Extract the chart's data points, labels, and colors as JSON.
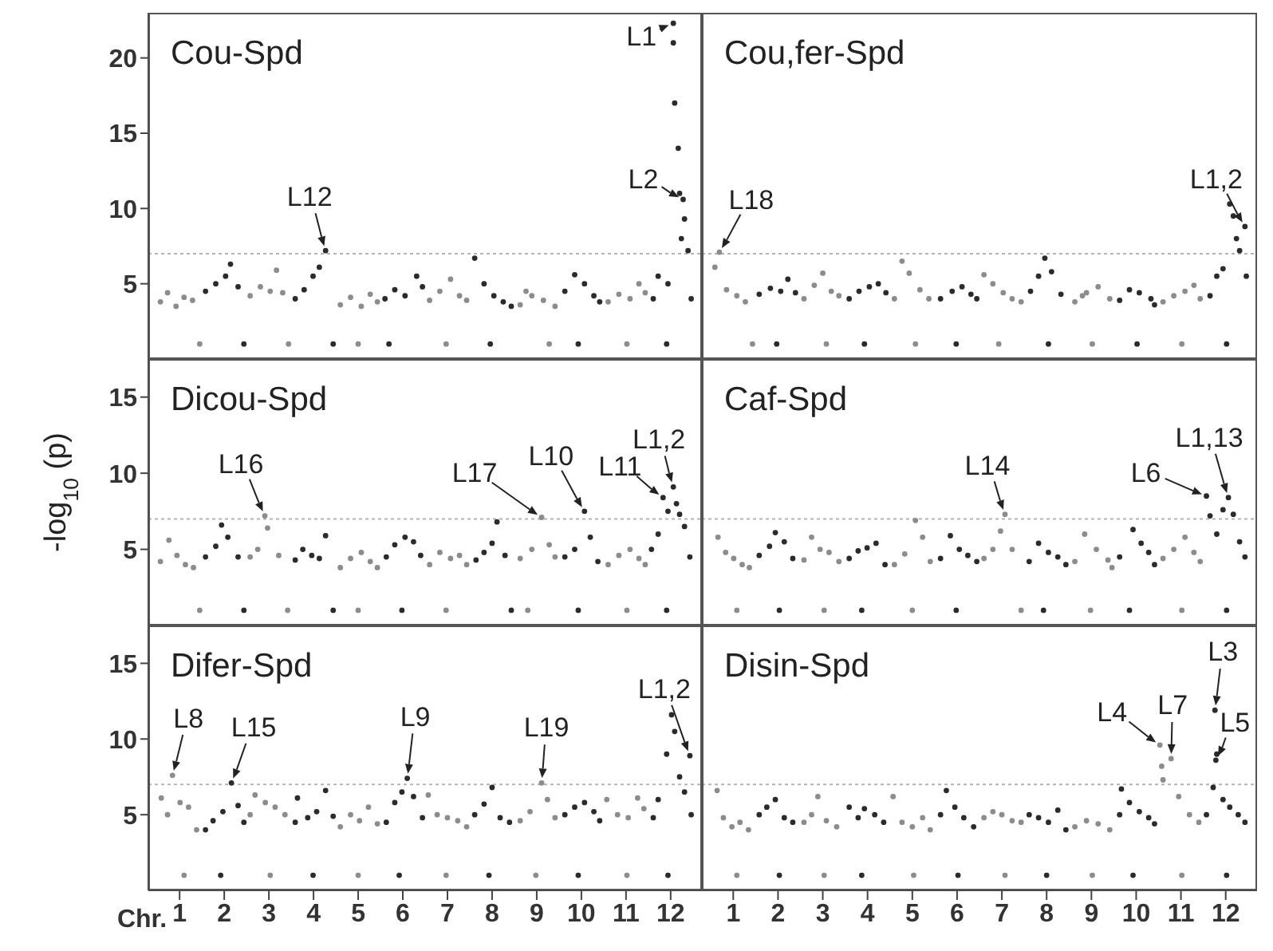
{
  "chart_data": [
    {
      "type": "scatter",
      "title": "Cou-Spd",
      "xlim": [
        0.3,
        12.7
      ],
      "xticks": [
        1,
        2,
        3,
        4,
        5,
        6,
        7,
        8,
        9,
        10,
        11,
        12
      ],
      "ylim": [
        0,
        23
      ],
      "yticks": [
        5,
        10,
        15,
        20
      ],
      "tick_labels": "y",
      "marker": "circle",
      "ref_lines": [
        {
          "axis": "y",
          "value": 7,
          "color": "#b4b4b4",
          "line_style": "dotted"
        }
      ],
      "annotations": [
        {
          "text": "L1",
          "x": 12.06,
          "y": 22.3
        },
        {
          "text": "L2",
          "x": 12.28,
          "y": 10.6
        },
        {
          "text": "L12",
          "x": 4.27,
          "y": 7.2
        }
      ],
      "series": [
        {
          "color": "#8c8c8c",
          "x": [
            0.57,
            0.73,
            0.92,
            1.1,
            1.29,
            1.45,
            2.58,
            2.81,
            3.03,
            3.17,
            3.31,
            3.44,
            4.6,
            4.83,
            5.07,
            5.27,
            5.43,
            5.0,
            6.6,
            6.83,
            7.07,
            7.27,
            7.43,
            6.97,
            8.63,
            8.89,
            9.15,
            9.41,
            8.76,
            9.28,
            10.6,
            10.84,
            11.09,
            11.29,
            11.43,
            11.02
          ],
          "values": [
            3.8,
            4.4,
            3.5,
            4.1,
            3.9,
            1.0,
            4.2,
            4.8,
            4.5,
            5.9,
            4.4,
            1.0,
            3.6,
            4.1,
            3.5,
            4.3,
            3.8,
            1.0,
            3.9,
            4.5,
            5.3,
            4.2,
            3.9,
            1.0,
            3.6,
            4.2,
            3.9,
            3.5,
            4.5,
            1.0,
            3.8,
            4.3,
            4.0,
            5.0,
            4.4,
            1.0
          ]
        },
        {
          "color": "#2b2b2b",
          "x": [
            1.58,
            1.81,
            2.03,
            2.14,
            2.31,
            2.44,
            3.59,
            3.79,
            3.99,
            4.13,
            4.27,
            4.44,
            5.6,
            5.82,
            6.05,
            6.31,
            6.44,
            5.69,
            7.61,
            7.82,
            8.04,
            8.25,
            8.43,
            7.96,
            9.63,
            9.85,
            10.07,
            10.28,
            10.41,
            9.93,
            12.06,
            12.06,
            12.09,
            12.17,
            12.2,
            12.28,
            12.31,
            12.39,
            12.24,
            11.72,
            11.61,
            11.94,
            12.46,
            11.91
          ],
          "values": [
            4.5,
            5.0,
            5.5,
            6.3,
            4.8,
            1.0,
            4.0,
            4.6,
            5.5,
            6.1,
            7.2,
            1.0,
            4.0,
            4.6,
            4.2,
            5.5,
            4.8,
            1.0,
            6.7,
            5.0,
            4.2,
            3.8,
            3.5,
            1.0,
            4.5,
            5.6,
            5.0,
            4.2,
            3.8,
            1.0,
            22.3,
            21.0,
            17.0,
            14.0,
            11.0,
            10.6,
            9.3,
            7.2,
            8.0,
            5.5,
            4.0,
            5.0,
            4.0,
            1.0
          ]
        }
      ]
    },
    {
      "type": "scatter",
      "title": "Cou,fer-Spd",
      "xlim": [
        0.3,
        12.7
      ],
      "xticks": [
        1,
        2,
        3,
        4,
        5,
        6,
        7,
        8,
        9,
        10,
        11,
        12
      ],
      "ylim": [
        0,
        23
      ],
      "tick_labels": false,
      "marker": "circle",
      "ref_lines": [
        {
          "axis": "y",
          "value": 7,
          "color": "#b4b4b4",
          "line_style": "dotted"
        }
      ],
      "annotations": [
        {
          "text": "L18",
          "x": 0.69,
          "y": 7.1
        },
        {
          "text": "L1,2",
          "x": 12.43,
          "y": 8.8
        }
      ],
      "series": [
        {
          "color": "#8c8c8c",
          "x": [
            0.59,
            0.69,
            0.85,
            1.08,
            1.27,
            1.43,
            2.58,
            2.81,
            3.0,
            3.19,
            3.36,
            3.08,
            4.6,
            4.77,
            4.93,
            5.17,
            5.37,
            5.07,
            6.6,
            6.8,
            7.03,
            7.23,
            7.43,
            6.93,
            8.63,
            8.89,
            9.15,
            9.41,
            9.02,
            8.8,
            10.6,
            10.84,
            11.09,
            11.29,
            11.43,
            11.02
          ],
          "values": [
            6.1,
            7.1,
            4.6,
            4.2,
            3.8,
            1.0,
            4.0,
            4.9,
            5.7,
            4.5,
            4.2,
            1.0,
            4.0,
            6.5,
            5.7,
            4.6,
            4.0,
            1.0,
            5.6,
            5.0,
            4.4,
            4.0,
            3.8,
            1.0,
            3.8,
            4.4,
            4.8,
            4.0,
            1.0,
            4.2,
            3.8,
            4.2,
            4.5,
            4.9,
            4.0,
            1.0
          ]
        },
        {
          "color": "#2b2b2b",
          "x": [
            1.58,
            1.83,
            2.06,
            2.22,
            2.39,
            1.97,
            3.59,
            3.81,
            4.04,
            4.24,
            4.41,
            3.93,
            5.63,
            5.89,
            6.11,
            6.31,
            6.44,
            5.98,
            7.64,
            7.82,
            7.96,
            8.11,
            8.32,
            8.04,
            9.63,
            9.85,
            10.07,
            10.33,
            10.02,
            10.41,
            11.65,
            11.8,
            11.94,
            12.09,
            12.17,
            12.24,
            12.31,
            12.43,
            12.46,
            12.02
          ],
          "values": [
            4.3,
            4.7,
            4.5,
            5.3,
            4.4,
            1.0,
            4.0,
            4.5,
            4.8,
            5.0,
            4.4,
            1.0,
            4.0,
            4.5,
            4.8,
            4.3,
            4.0,
            1.0,
            4.5,
            5.5,
            6.7,
            5.8,
            4.3,
            1.0,
            3.9,
            4.6,
            4.4,
            4.0,
            1.0,
            3.6,
            4.2,
            5.5,
            6.0,
            10.3,
            9.5,
            8.0,
            7.2,
            8.8,
            5.5,
            1.0
          ]
        }
      ]
    },
    {
      "type": "scatter",
      "title": "Dicou-Spd",
      "ylabel": "-log$_{10}$ (p)",
      "xlim": [
        0.3,
        12.7
      ],
      "xticks": [
        1,
        2,
        3,
        4,
        5,
        6,
        7,
        8,
        9,
        10,
        11,
        12
      ],
      "ylim": [
        0,
        17.5
      ],
      "yticks": [
        5,
        10,
        15
      ],
      "tick_labels": "y",
      "marker": "circle",
      "ref_lines": [
        {
          "axis": "y",
          "value": 7,
          "color": "#b4b4b4",
          "line_style": "dotted"
        }
      ],
      "annotations": [
        {
          "text": "L16",
          "x": 2.91,
          "y": 7.2
        },
        {
          "text": "L17",
          "x": 9.11,
          "y": 7.1
        },
        {
          "text": "L10",
          "x": 10.07,
          "y": 7.5
        },
        {
          "text": "L11",
          "x": 11.83,
          "y": 8.4
        },
        {
          "text": "L1,2",
          "x": 12.06,
          "y": 9.1
        }
      ],
      "series": [
        {
          "color": "#8c8c8c",
          "x": [
            0.57,
            0.76,
            0.94,
            1.13,
            1.31,
            1.45,
            2.58,
            2.75,
            2.91,
            2.97,
            3.22,
            3.42,
            4.6,
            4.83,
            5.07,
            5.27,
            5.43,
            5.0,
            6.6,
            6.83,
            7.07,
            7.27,
            7.43,
            6.97,
            8.63,
            8.89,
            9.11,
            9.28,
            9.41,
            8.8,
            10.6,
            10.84,
            11.09,
            11.29,
            11.43,
            11.02
          ],
          "values": [
            4.2,
            5.6,
            4.6,
            4.0,
            3.8,
            1.0,
            4.5,
            5.0,
            7.2,
            6.4,
            4.6,
            1.0,
            3.8,
            4.4,
            4.8,
            4.2,
            3.8,
            1.0,
            4.0,
            4.8,
            4.4,
            4.6,
            4.0,
            1.0,
            4.4,
            5.0,
            7.1,
            5.3,
            4.5,
            1.0,
            4.0,
            4.6,
            5.0,
            4.4,
            4.0,
            1.0
          ]
        },
        {
          "color": "#2b2b2b",
          "x": [
            1.58,
            1.81,
            1.94,
            2.08,
            2.31,
            2.44,
            3.59,
            3.76,
            3.96,
            4.13,
            4.27,
            4.44,
            5.63,
            5.82,
            6.05,
            6.24,
            6.4,
            5.98,
            7.64,
            7.82,
            8.0,
            8.11,
            8.29,
            8.43,
            9.63,
            9.85,
            10.07,
            10.2,
            10.37,
            9.93,
            11.57,
            11.72,
            11.83,
            11.94,
            12.06,
            12.13,
            12.2,
            12.31,
            12.43,
            11.91
          ],
          "values": [
            4.5,
            5.2,
            6.6,
            5.8,
            4.5,
            1.0,
            4.3,
            5.0,
            4.6,
            4.4,
            5.9,
            1.0,
            4.5,
            5.3,
            5.8,
            5.5,
            4.6,
            1.0,
            4.3,
            4.8,
            5.4,
            6.8,
            4.6,
            1.0,
            4.5,
            5.0,
            7.5,
            5.8,
            4.2,
            1.0,
            5.0,
            6.0,
            8.4,
            7.5,
            9.1,
            8.0,
            7.3,
            6.5,
            4.5,
            1.0
          ]
        }
      ]
    },
    {
      "type": "scatter",
      "title": "Caf-Spd",
      "xlim": [
        0.3,
        12.7
      ],
      "xticks": [
        1,
        2,
        3,
        4,
        5,
        6,
        7,
        8,
        9,
        10,
        11,
        12
      ],
      "ylim": [
        0,
        17.5
      ],
      "tick_labels": false,
      "marker": "circle",
      "ref_lines": [
        {
          "axis": "y",
          "value": 7,
          "color": "#b4b4b4",
          "line_style": "dotted"
        }
      ],
      "annotations": [
        {
          "text": "L14",
          "x": 7.07,
          "y": 7.3
        },
        {
          "text": "L6",
          "x": 11.57,
          "y": 8.5
        },
        {
          "text": "L1,13",
          "x": 12.06,
          "y": 8.4
        }
      ],
      "series": [
        {
          "color": "#8c8c8c",
          "x": [
            0.66,
            0.83,
            1.01,
            1.2,
            1.36,
            1.08,
            2.58,
            2.75,
            2.94,
            3.14,
            3.36,
            3.03,
            4.6,
            4.83,
            5.07,
            5.23,
            5.4,
            5.0,
            6.6,
            6.8,
            6.97,
            7.07,
            7.23,
            7.43,
            8.63,
            8.85,
            9.11,
            9.37,
            8.98,
            9.46,
            10.6,
            10.84,
            11.09,
            11.29,
            11.43,
            11.02
          ],
          "values": [
            5.8,
            4.8,
            4.4,
            4.0,
            3.8,
            1.0,
            4.3,
            5.8,
            5.0,
            4.8,
            4.2,
            1.0,
            4.0,
            4.7,
            6.9,
            5.8,
            4.2,
            1.0,
            4.4,
            5.0,
            6.2,
            7.3,
            5.0,
            1.0,
            4.2,
            6.0,
            5.0,
            4.3,
            1.0,
            3.8,
            4.4,
            5.0,
            5.8,
            4.8,
            4.2,
            1.0
          ]
        },
        {
          "color": "#2b2b2b",
          "x": [
            1.58,
            1.81,
            1.94,
            2.14,
            2.33,
            2.03,
            3.59,
            3.79,
            3.99,
            4.19,
            4.39,
            3.87,
            5.63,
            5.85,
            6.05,
            6.24,
            6.44,
            5.98,
            7.61,
            7.82,
            8.04,
            8.25,
            8.43,
            7.93,
            9.63,
            9.93,
            10.11,
            10.28,
            10.41,
            9.85,
            11.57,
            11.65,
            11.8,
            11.94,
            12.06,
            12.17,
            12.31,
            12.43,
            12.02
          ],
          "values": [
            4.6,
            5.2,
            6.1,
            5.5,
            4.4,
            1.0,
            4.4,
            4.9,
            5.1,
            5.4,
            4.0,
            1.0,
            4.4,
            5.9,
            5.0,
            4.6,
            4.2,
            1.0,
            4.2,
            5.4,
            4.8,
            4.5,
            4.0,
            1.0,
            4.5,
            6.3,
            5.4,
            4.8,
            4.0,
            1.0,
            8.5,
            7.2,
            6.0,
            7.6,
            8.4,
            7.3,
            5.5,
            4.5,
            1.0
          ]
        }
      ]
    },
    {
      "type": "scatter",
      "title": "Difer-Spd",
      "xlabel": "Chr.",
      "xlim": [
        0.3,
        12.7
      ],
      "xticks": [
        1,
        2,
        3,
        4,
        5,
        6,
        7,
        8,
        9,
        10,
        11,
        12
      ],
      "ylim": [
        0,
        17.5
      ],
      "yticks": [
        5,
        10,
        15
      ],
      "marker": "circle",
      "ref_lines": [
        {
          "axis": "y",
          "value": 7,
          "color": "#b4b4b4",
          "line_style": "dotted"
        }
      ],
      "annotations": [
        {
          "text": "L8",
          "x": 0.84,
          "y": 7.6
        },
        {
          "text": "L15",
          "x": 2.16,
          "y": 7.1
        },
        {
          "text": "L9",
          "x": 6.1,
          "y": 7.4
        },
        {
          "text": "L19",
          "x": 9.11,
          "y": 7.1
        },
        {
          "text": "L1,2",
          "x": 12.43,
          "y": 8.9
        }
      ],
      "series": [
        {
          "color": "#8c8c8c",
          "x": [
            0.59,
            0.73,
            0.84,
            1.01,
            1.2,
            1.38,
            1.1,
            2.58,
            2.69,
            2.92,
            3.14,
            3.36,
            3.03,
            4.6,
            4.83,
            5.03,
            5.23,
            5.43,
            5.0,
            6.57,
            6.77,
            7.0,
            7.23,
            7.43,
            6.97,
            8.63,
            8.85,
            9.11,
            9.24,
            9.41,
            8.98,
            10.57,
            10.81,
            11.05,
            11.26,
            11.4,
            11.02
          ],
          "values": [
            6.1,
            5.0,
            7.6,
            5.8,
            5.5,
            4.0,
            1.0,
            5.0,
            6.3,
            5.8,
            5.5,
            5.0,
            1.0,
            4.2,
            5.0,
            4.6,
            5.5,
            4.4,
            1.0,
            6.3,
            5.0,
            4.8,
            4.6,
            4.2,
            1.0,
            4.6,
            5.2,
            7.1,
            6.0,
            4.8,
            1.0,
            6.0,
            5.0,
            4.8,
            6.1,
            5.4,
            1.0
          ]
        },
        {
          "color": "#2b2b2b",
          "x": [
            1.58,
            1.75,
            1.97,
            2.16,
            2.31,
            2.44,
            1.92,
            3.59,
            3.64,
            3.87,
            4.07,
            4.27,
            4.44,
            3.99,
            5.63,
            5.82,
            5.98,
            6.1,
            6.24,
            6.44,
            5.92,
            7.61,
            7.82,
            8.0,
            8.18,
            8.39,
            7.93,
            9.63,
            9.85,
            10.07,
            10.28,
            10.41,
            9.93,
            11.61,
            11.72,
            11.91,
            12.02,
            12.09,
            12.2,
            12.31,
            12.43,
            12.46,
            11.94
          ],
          "values": [
            4.0,
            4.6,
            5.2,
            7.1,
            5.6,
            4.5,
            1.0,
            4.5,
            6.1,
            4.8,
            5.2,
            6.6,
            4.9,
            1.0,
            4.5,
            5.8,
            6.5,
            7.4,
            6.2,
            4.8,
            1.0,
            5.0,
            5.7,
            6.8,
            4.8,
            4.5,
            1.0,
            5.0,
            5.5,
            5.8,
            5.2,
            4.6,
            1.0,
            4.8,
            6.0,
            9.0,
            11.6,
            10.5,
            7.5,
            6.5,
            8.9,
            5.0,
            1.0
          ]
        }
      ]
    },
    {
      "type": "scatter",
      "title": "Disin-Spd",
      "xlim": [
        0.3,
        12.7
      ],
      "xticks": [
        1,
        2,
        3,
        4,
        5,
        6,
        7,
        8,
        9,
        10,
        11,
        12
      ],
      "ylim": [
        0,
        17.5
      ],
      "tick_labels": "x",
      "marker": "circle",
      "ref_lines": [
        {
          "axis": "y",
          "value": 7,
          "color": "#b4b4b4",
          "line_style": "dotted"
        }
      ],
      "annotations": [
        {
          "text": "L4",
          "x": 10.53,
          "y": 9.6
        },
        {
          "text": "L7",
          "x": 10.78,
          "y": 8.7
        },
        {
          "text": "L3",
          "x": 11.76,
          "y": 11.9
        },
        {
          "text": "L5",
          "x": 11.78,
          "y": 8.6
        }
      ],
      "series": [
        {
          "color": "#8c8c8c",
          "x": [
            0.64,
            0.78,
            0.97,
            1.15,
            1.34,
            1.08,
            2.58,
            2.75,
            2.89,
            3.08,
            3.31,
            3.03,
            4.57,
            4.77,
            5.0,
            5.23,
            5.4,
            5.03,
            6.6,
            6.8,
            7.0,
            7.23,
            7.43,
            7.07,
            8.63,
            8.89,
            9.15,
            9.41,
            9.02,
            10.53,
            10.57,
            10.6,
            10.78,
            10.95,
            11.19,
            11.4,
            11.02
          ],
          "values": [
            6.6,
            4.8,
            4.2,
            4.5,
            4.0,
            1.0,
            4.5,
            5.0,
            6.2,
            4.6,
            4.2,
            1.0,
            6.2,
            4.5,
            4.2,
            4.8,
            4.0,
            1.0,
            4.8,
            5.2,
            5.0,
            4.6,
            4.5,
            1.0,
            4.2,
            4.6,
            4.4,
            4.0,
            1.0,
            9.6,
            8.2,
            7.3,
            8.7,
            6.2,
            5.0,
            4.5,
            1.0
          ]
        },
        {
          "color": "#2b2b2b",
          "x": [
            1.58,
            1.75,
            1.94,
            2.14,
            2.33,
            2.03,
            3.59,
            3.79,
            3.93,
            4.16,
            4.36,
            3.87,
            5.63,
            5.76,
            5.95,
            6.15,
            6.37,
            6.02,
            7.61,
            7.82,
            8.04,
            8.25,
            8.43,
            8.0,
            9.63,
            9.67,
            9.85,
            10.07,
            10.28,
            10.41,
            9.93,
            11.57,
            11.72,
            11.76,
            11.78,
            11.8,
            11.94,
            12.09,
            12.28,
            12.43,
            12.02
          ],
          "values": [
            5.0,
            5.5,
            6.0,
            4.8,
            4.5,
            1.0,
            5.5,
            4.8,
            5.4,
            5.0,
            4.5,
            1.0,
            5.0,
            6.6,
            5.5,
            4.8,
            4.2,
            1.0,
            5.0,
            4.8,
            4.5,
            5.3,
            4.0,
            1.0,
            5.0,
            6.7,
            5.8,
            5.2,
            4.8,
            4.4,
            1.0,
            5.0,
            6.8,
            11.9,
            8.6,
            9.0,
            6.0,
            5.5,
            5.0,
            4.5,
            1.0
          ]
        }
      ]
    }
  ]
}
